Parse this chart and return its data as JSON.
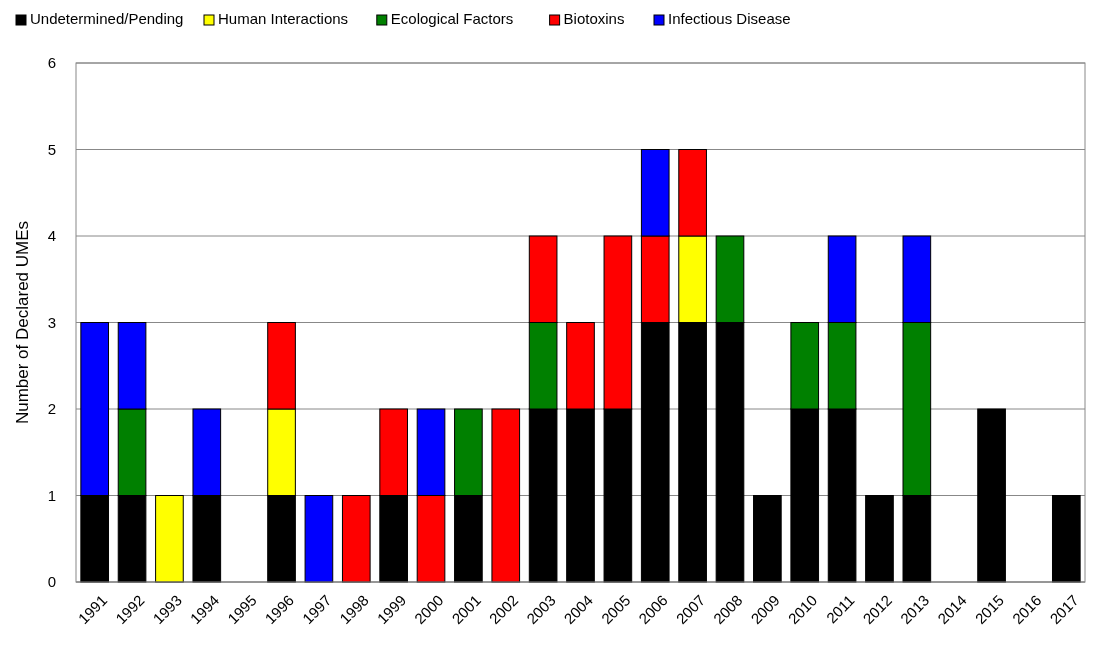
{
  "chart_data": {
    "type": "bar",
    "stacked": true,
    "ylabel": "Number of Declared UMEs",
    "categories": [
      "1991",
      "1992",
      "1993",
      "1994",
      "1995",
      "1996",
      "1997",
      "1998",
      "1999",
      "2000",
      "2001",
      "2002",
      "2003",
      "2004",
      "2005",
      "2006",
      "2007",
      "2008",
      "2009",
      "2010",
      "2011",
      "2012",
      "2013",
      "2014",
      "2015",
      "2016",
      "2017"
    ],
    "series": [
      {
        "name": "Undetermined/Pending",
        "color": "#000000",
        "values": [
          1,
          1,
          0,
          1,
          0,
          1,
          0,
          0,
          1,
          0,
          1,
          0,
          2,
          2,
          2,
          3,
          3,
          3,
          1,
          2,
          2,
          1,
          1,
          0,
          2,
          0,
          1
        ]
      },
      {
        "name": "Human Interactions",
        "color": "#ffff00",
        "values": [
          0,
          0,
          1,
          0,
          0,
          1,
          0,
          0,
          0,
          0,
          0,
          0,
          0,
          0,
          0,
          0,
          1,
          0,
          0,
          0,
          0,
          0,
          0,
          0,
          0,
          0,
          0
        ]
      },
      {
        "name": "Ecological Factors",
        "color": "#008000",
        "values": [
          0,
          1,
          0,
          0,
          0,
          0,
          0,
          0,
          0,
          0,
          1,
          0,
          1,
          0,
          0,
          0,
          0,
          1,
          0,
          1,
          1,
          0,
          2,
          0,
          0,
          0,
          0
        ]
      },
      {
        "name": "Biotoxins",
        "color": "#ff0000",
        "values": [
          0,
          0,
          0,
          0,
          0,
          1,
          0,
          1,
          1,
          1,
          0,
          2,
          1,
          1,
          2,
          1,
          1,
          0,
          0,
          0,
          0,
          0,
          0,
          0,
          0,
          0,
          0
        ]
      },
      {
        "name": "Infectious Disease",
        "color": "#0000ff",
        "values": [
          2,
          1,
          0,
          1,
          0,
          0,
          1,
          0,
          0,
          1,
          0,
          0,
          0,
          0,
          0,
          1,
          0,
          0,
          0,
          0,
          1,
          0,
          1,
          0,
          0,
          0,
          0
        ]
      }
    ],
    "ylim": [
      0,
      6
    ],
    "yticks": [
      0,
      1,
      2,
      3,
      4,
      5,
      6
    ],
    "grid": "y",
    "legend": "top"
  }
}
